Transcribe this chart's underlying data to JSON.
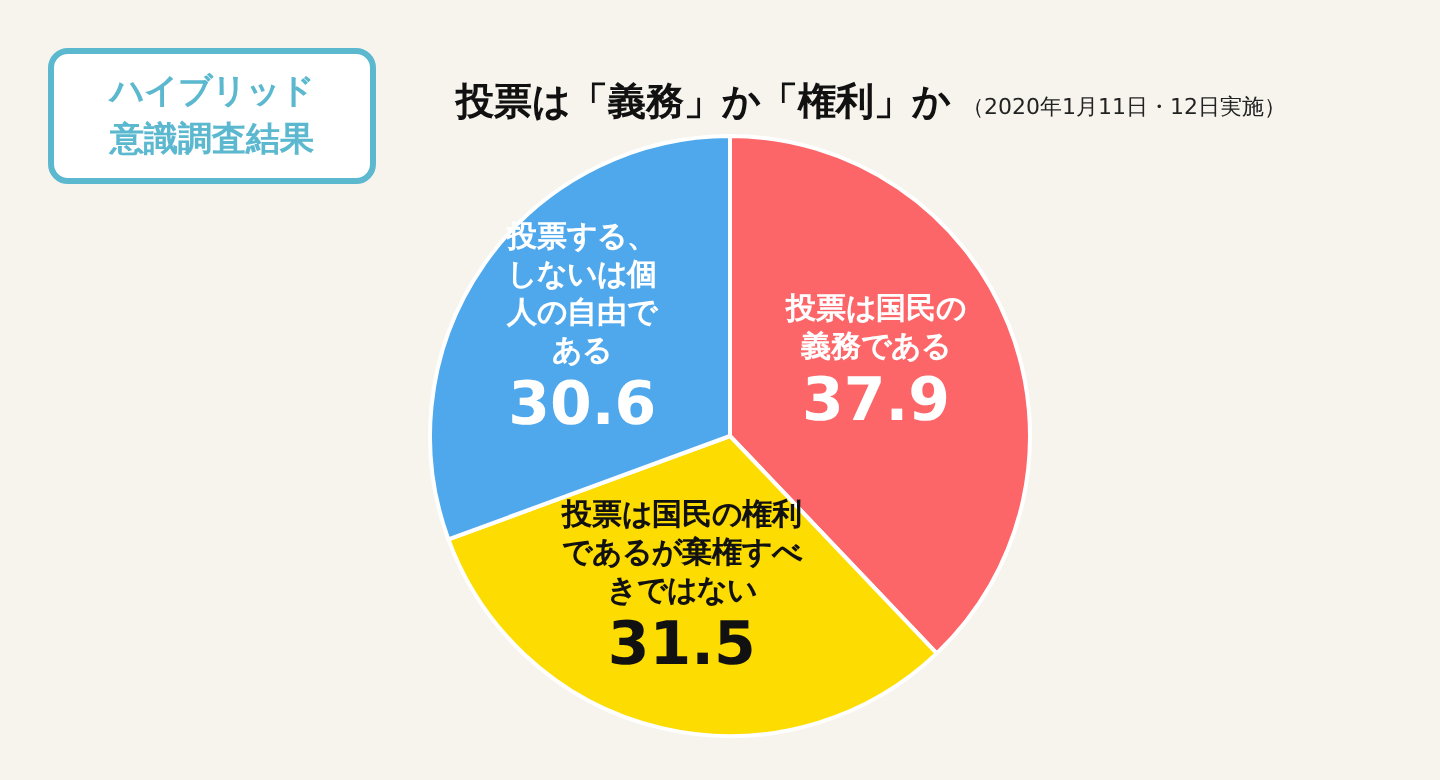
{
  "chart_data": {
    "type": "pie",
    "title": "投票は「義務」か「権利」か",
    "subtitle": "（2020年1月11日・12日実施）",
    "annotations": [
      "ハイブリッド意識調査結果"
    ],
    "categories": [
      "投票は国民の義務である",
      "投票は国民の権利であるが棄権すべきではない",
      "投票する、しないは個人の自由である"
    ],
    "values": [
      37.9,
      31.5,
      30.6
    ],
    "colors": [
      "#fd6668",
      "#fddc02",
      "#4fa8ec"
    ],
    "data_labels": true
  }
}
